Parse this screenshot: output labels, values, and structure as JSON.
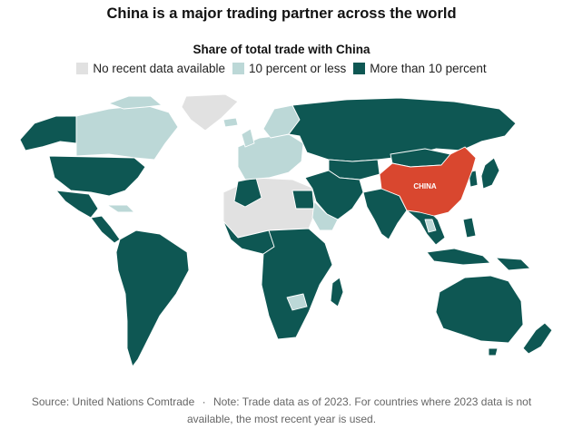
{
  "title": "China is a major trading partner across the world",
  "legend": {
    "title": "Share of total trade with China",
    "items": [
      {
        "label": "No recent data available",
        "color": "#e1e1e1"
      },
      {
        "label": "10 percent or less",
        "color": "#bcd8d7"
      },
      {
        "label": "More than 10 percent",
        "color": "#0e5753"
      }
    ]
  },
  "map": {
    "highlight_label": "CHINA",
    "highlight_color": "#d9472f",
    "border_color": "#ffffff"
  },
  "footnote": {
    "source": "Source: United Nations Comtrade",
    "separator": "·",
    "note": "Note: Trade data as of 2023. For countries where 2023 data is not available, the most recent year is used."
  }
}
